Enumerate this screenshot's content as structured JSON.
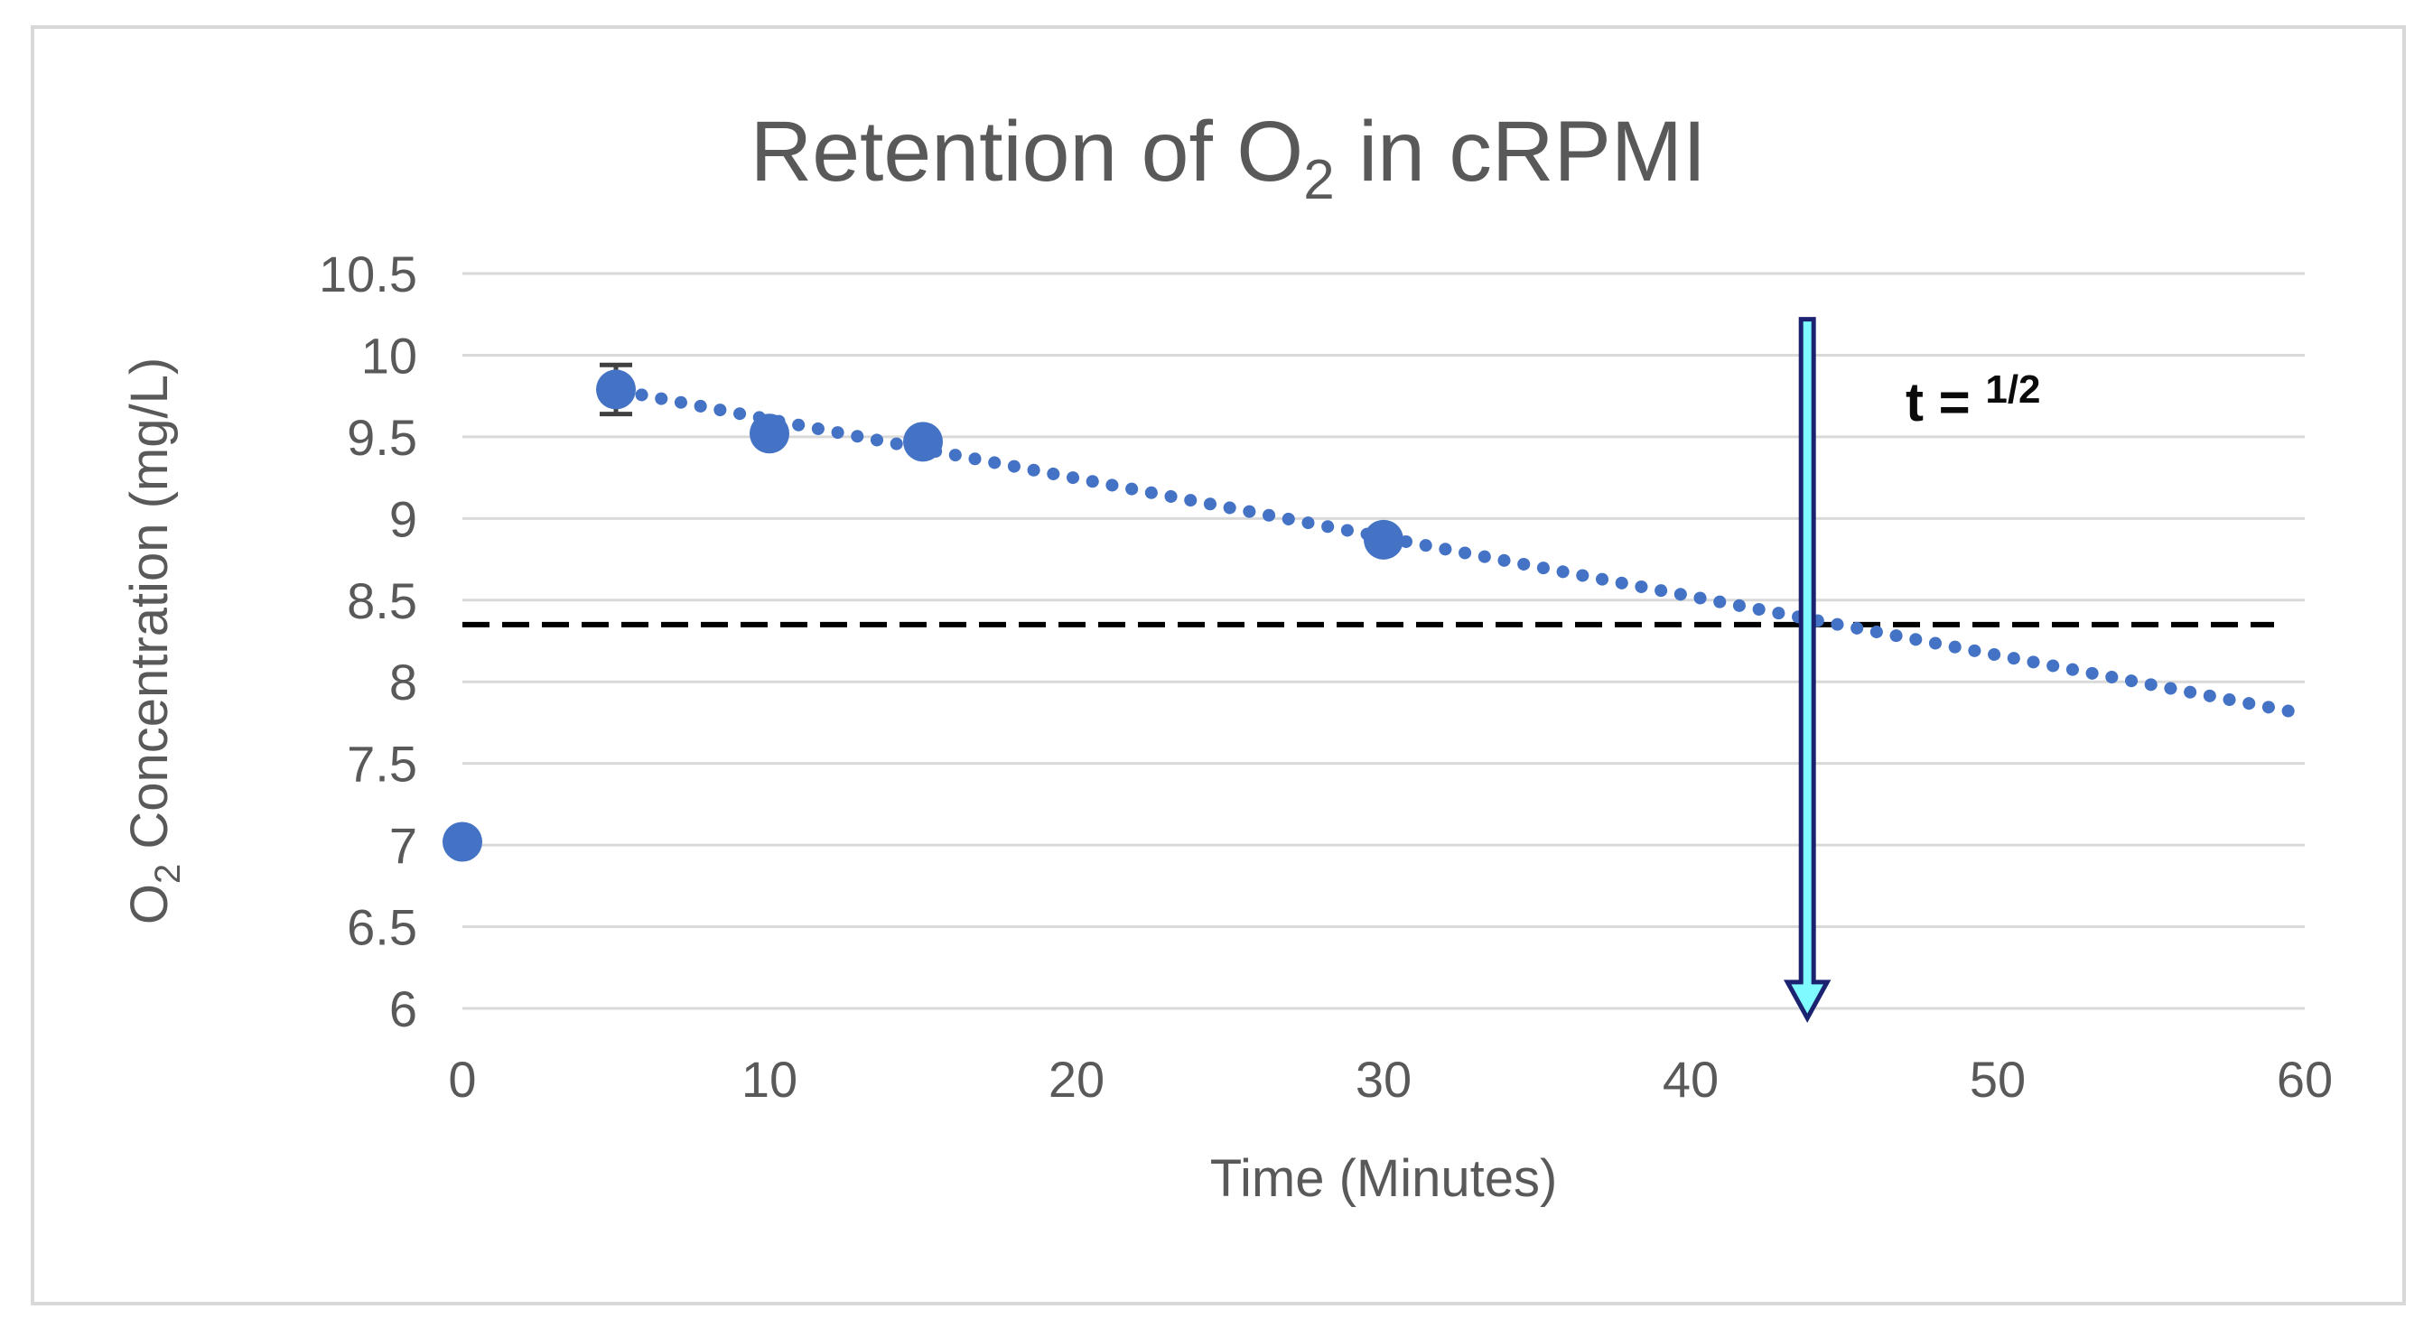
{
  "figure": {
    "background": "#ffffff",
    "border_color": "#d8d8d8"
  },
  "chart_data": {
    "type": "scatter",
    "title": {
      "pre": "Retention of O",
      "sub": "2",
      "post": " in cRPMI"
    },
    "xlabel": "Time (Minutes)",
    "ylabel": {
      "pre": "O",
      "sub": "2",
      "post": " Concentration (mg/L)"
    },
    "xlim": [
      0,
      60
    ],
    "ylim": [
      6,
      10.5
    ],
    "x_ticks": [
      0,
      10,
      20,
      30,
      40,
      50,
      60
    ],
    "y_ticks": [
      6,
      6.5,
      7,
      7.5,
      8,
      8.5,
      9,
      9.5,
      10,
      10.5
    ],
    "grid": "horizontal-only",
    "legend": "none",
    "points": [
      {
        "x": 0,
        "y": 7.02
      },
      {
        "x": 5,
        "y": 9.79,
        "error_plus": 0.15,
        "error_minus": 0.15
      },
      {
        "x": 10,
        "y": 9.52
      },
      {
        "x": 15,
        "y": 9.47
      },
      {
        "x": 30,
        "y": 8.87
      }
    ],
    "trendline": {
      "style": "dotted",
      "from": {
        "x": 5.2,
        "y": 9.78
      },
      "to": {
        "x": 59.5,
        "y": 7.82
      }
    },
    "half_saturation_line": {
      "style": "dashed",
      "y": 8.35,
      "from_x": 0,
      "to_x": 59
    },
    "arrow": {
      "x": 43.8,
      "from_y": 10.22,
      "to_y": 5.94,
      "fill": "#7ffafe",
      "stroke": "#1b2370"
    },
    "annotation": {
      "text": "t = ",
      "superscript": "1/2",
      "x": 47,
      "y": 9.6
    },
    "colors": {
      "marker": "#4472c4",
      "trend": "#4472c4",
      "dashed_line": "#000000",
      "error_bar": "#404040",
      "grid": "#d9d9d9",
      "text": "#595959"
    }
  }
}
